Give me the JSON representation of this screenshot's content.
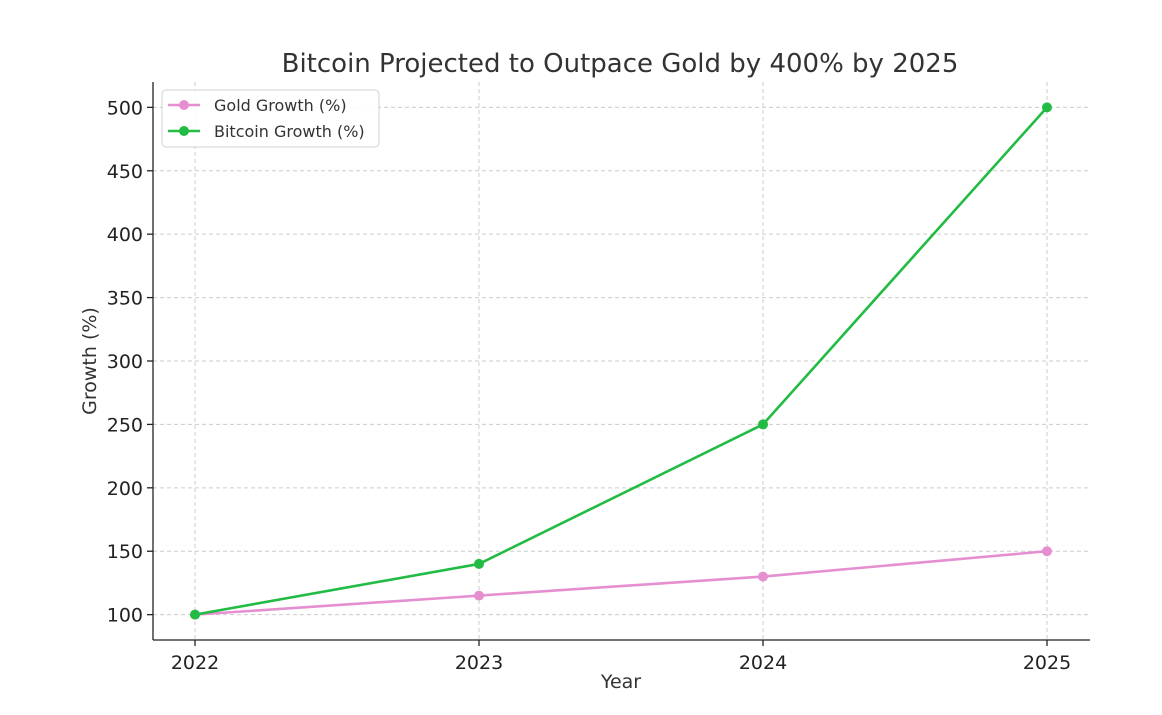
{
  "chart_data": {
    "type": "line",
    "title": "Bitcoin Projected to Outpace Gold by 400% by 2025",
    "xlabel": "Year",
    "ylabel": "Growth (%)",
    "x": [
      "2022",
      "2023",
      "2024",
      "2025"
    ],
    "yticks": [
      100,
      150,
      200,
      250,
      300,
      350,
      400,
      450,
      500
    ],
    "ylim": [
      80,
      520
    ],
    "grid": true,
    "legend_position": "top-left",
    "series": [
      {
        "name": "Gold Growth (%)",
        "color": "#e58fd0",
        "values": [
          100,
          115,
          130,
          150
        ]
      },
      {
        "name": "Bitcoin Growth (%)",
        "color": "#22bb44",
        "values": [
          100,
          140,
          250,
          500
        ]
      }
    ]
  }
}
